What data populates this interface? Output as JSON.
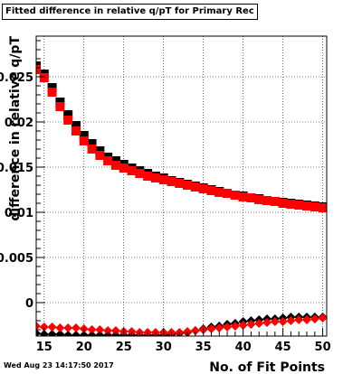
{
  "title": "Fitted difference in relative q/pT for Primary Rec All NoHits",
  "datestamp": "Wed Aug 23 14:17:50 2017",
  "colors": {
    "series_a": "#000000",
    "series_b": "#ff0000",
    "grid": "#000000"
  },
  "chart_data": {
    "type": "scatter",
    "xlabel": "No. of Fit Points",
    "ylabel": "difference in relative q/pT",
    "xlim": [
      14,
      50.5
    ],
    "ylim": [
      -0.0037,
      0.0295
    ],
    "grid": true,
    "x_ticks": [
      15,
      20,
      25,
      30,
      35,
      40,
      45,
      50
    ],
    "x_tick_labels": [
      "15",
      "20",
      "25",
      "30",
      "35",
      "40",
      "45",
      "50"
    ],
    "y_ticks": [
      0,
      0.005,
      0.01,
      0.015,
      0.02,
      0.025
    ],
    "y_tick_labels": [
      "0",
      "0.005",
      "0.01",
      "0.015",
      "0.02",
      "0.025"
    ],
    "series": [
      {
        "marker": "square",
        "color": "#000000",
        "x": [
          14,
          15,
          16,
          17,
          18,
          19,
          20,
          21,
          22,
          23,
          24,
          25,
          26,
          27,
          28,
          29,
          30,
          31,
          32,
          33,
          34,
          35,
          36,
          37,
          38,
          39,
          40,
          41,
          42,
          43,
          44,
          45,
          46,
          47,
          48,
          49,
          50
        ],
        "y": [
          0.0262,
          0.0253,
          0.0238,
          0.0222,
          0.0208,
          0.0196,
          0.0185,
          0.0176,
          0.0168,
          0.0161,
          0.0157,
          0.0153,
          0.0149,
          0.0146,
          0.0143,
          0.014,
          0.0138,
          0.0135,
          0.0133,
          0.0131,
          0.0129,
          0.0127,
          0.0125,
          0.0123,
          0.0121,
          0.0119,
          0.0118,
          0.0116,
          0.0115,
          0.0113,
          0.0112,
          0.0111,
          0.011,
          0.0109,
          0.0108,
          0.0107,
          0.0106
        ]
      },
      {
        "marker": "square",
        "color": "#ff0000",
        "x": [
          14,
          15,
          16,
          17,
          18,
          19,
          20,
          21,
          22,
          23,
          24,
          25,
          26,
          27,
          28,
          29,
          30,
          31,
          32,
          33,
          34,
          35,
          36,
          37,
          38,
          39,
          40,
          41,
          42,
          43,
          44,
          45,
          46,
          47,
          48,
          49,
          50
        ],
        "y": [
          0.0258,
          0.0249,
          0.0233,
          0.0217,
          0.0202,
          0.019,
          0.0179,
          0.017,
          0.0163,
          0.0157,
          0.0152,
          0.0149,
          0.0146,
          0.0143,
          0.014,
          0.0138,
          0.0136,
          0.0134,
          0.0132,
          0.013,
          0.0128,
          0.0126,
          0.0124,
          0.0122,
          0.0121,
          0.0119,
          0.0117,
          0.0116,
          0.0114,
          0.0113,
          0.0112,
          0.011,
          0.0109,
          0.0108,
          0.0107,
          0.0106,
          0.0105
        ]
      },
      {
        "marker": "diamond",
        "color": "#000000",
        "x": [
          14,
          15,
          16,
          17,
          18,
          19,
          20,
          21,
          22,
          23,
          24,
          25,
          26,
          27,
          28,
          29,
          30,
          31,
          32,
          33,
          34,
          35,
          36,
          37,
          38,
          39,
          40,
          41,
          42,
          43,
          44,
          45,
          46,
          47,
          48,
          49,
          50
        ],
        "y": [
          -0.0034,
          -0.0035,
          -0.0035,
          -0.0035,
          -0.0036,
          -0.0036,
          -0.0036,
          -0.0036,
          -0.0036,
          -0.0036,
          -0.0036,
          -0.0036,
          -0.0036,
          -0.0036,
          -0.0036,
          -0.0036,
          -0.0036,
          -0.0035,
          -0.0034,
          -0.0033,
          -0.0031,
          -0.0029,
          -0.0027,
          -0.0026,
          -0.0024,
          -0.0023,
          -0.0021,
          -0.002,
          -0.0019,
          -0.0018,
          -0.0018,
          -0.0017,
          -0.0016,
          -0.0016,
          -0.0016,
          -0.0016,
          -0.0016
        ]
      },
      {
        "marker": "diamond",
        "color": "#ff0000",
        "x": [
          14,
          15,
          16,
          17,
          18,
          19,
          20,
          21,
          22,
          23,
          24,
          25,
          26,
          27,
          28,
          29,
          30,
          31,
          32,
          33,
          34,
          35,
          36,
          37,
          38,
          39,
          40,
          41,
          42,
          43,
          44,
          45,
          46,
          47,
          48,
          49,
          50
        ],
        "y": [
          -0.0026,
          -0.0027,
          -0.0027,
          -0.0028,
          -0.0028,
          -0.0028,
          -0.0029,
          -0.003,
          -0.003,
          -0.0031,
          -0.0031,
          -0.0032,
          -0.0032,
          -0.0033,
          -0.0033,
          -0.0033,
          -0.0033,
          -0.0033,
          -0.0033,
          -0.0032,
          -0.0031,
          -0.003,
          -0.0029,
          -0.0028,
          -0.0027,
          -0.0026,
          -0.0025,
          -0.0024,
          -0.0023,
          -0.0022,
          -0.0021,
          -0.0021,
          -0.002,
          -0.0019,
          -0.0019,
          -0.0018,
          -0.0017
        ]
      }
    ]
  }
}
